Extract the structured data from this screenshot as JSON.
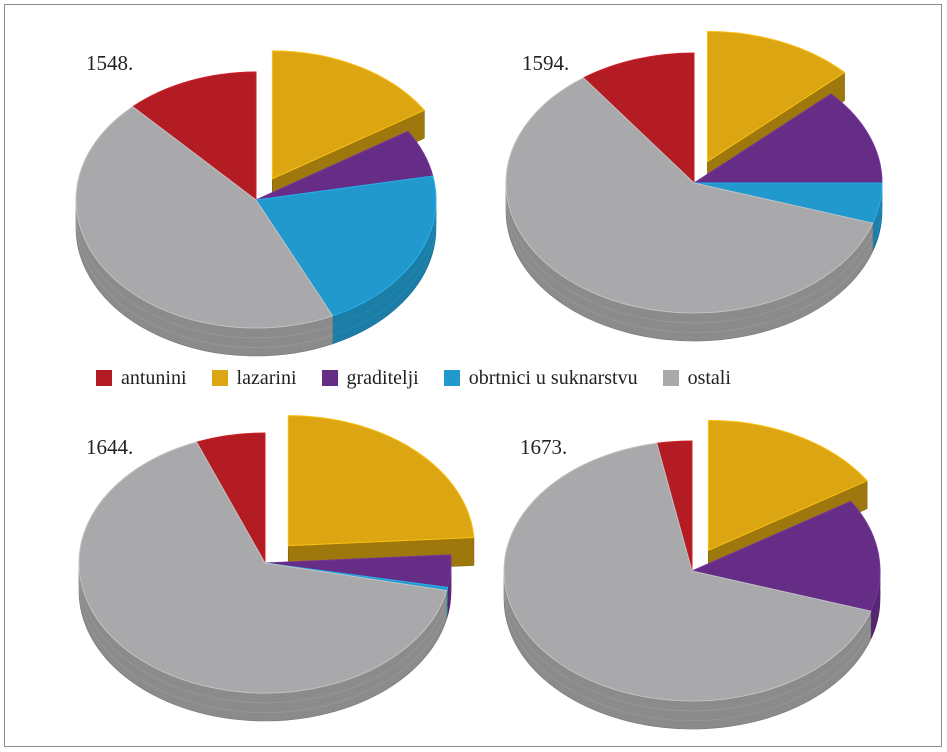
{
  "chart_data": [
    {
      "type": "pie",
      "title": "1548.",
      "categories": [
        "antunini",
        "lazarini",
        "graditelji",
        "obrtnici u suknarstvu",
        "ostali"
      ],
      "values": [
        12,
        16,
        6,
        21,
        45
      ],
      "exploded": [
        "lazarini"
      ]
    },
    {
      "type": "pie",
      "title": "1594.",
      "categories": [
        "antunini",
        "lazarini",
        "graditelji",
        "obrtnici u suknarstvu",
        "ostali"
      ],
      "values": [
        10,
        13,
        12,
        5,
        60
      ],
      "exploded": [
        "lazarini"
      ]
    },
    {
      "type": "pie",
      "title": "1644.",
      "categories": [
        "antunini",
        "lazarini",
        "graditelji",
        "obrtnici u suknarstvu",
        "ostali"
      ],
      "values": [
        6,
        24,
        4,
        0.4,
        65.6
      ],
      "exploded": [
        "lazarini"
      ]
    },
    {
      "type": "pie",
      "title": "1673.",
      "categories": [
        "antunini",
        "lazarini",
        "graditelji",
        "obrtnici u suknarstvu",
        "ostali"
      ],
      "values": [
        3,
        16,
        14,
        0,
        67
      ],
      "exploded": [
        "lazarini"
      ]
    }
  ],
  "legend": {
    "placement": "center",
    "items": [
      {
        "label": "antunini",
        "color": "#b31c22"
      },
      {
        "label": "lazarini",
        "color": "#dba611"
      },
      {
        "label": "graditelji",
        "color": "#662d87"
      },
      {
        "label": "obrtnici u suknarstvu",
        "color": "#2299cc"
      },
      {
        "label": "ostali",
        "color": "#a9a9ab"
      }
    ]
  },
  "colors": {
    "antunini": "#b31c22",
    "lazarini": "#dba611",
    "graditelji": "#662d87",
    "obrtnici u suknarstvu": "#2299cc",
    "ostali": "#a9a9ab"
  }
}
